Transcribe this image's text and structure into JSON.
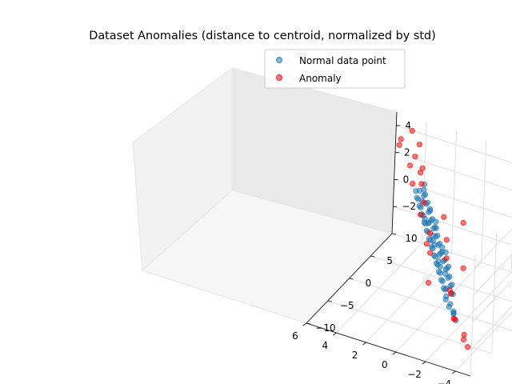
{
  "chart_data": {
    "type": "scatter",
    "title": "Dataset Anomalies (distance to centroid, normalized by std)",
    "xlabel": "",
    "ylabel": "",
    "zlabel": "",
    "xlim": [
      -5,
      6
    ],
    "ylim": [
      -10,
      10
    ],
    "zlim": [
      -4,
      5
    ],
    "x_ticks": [
      "−4",
      "−2",
      "0",
      "2",
      "4",
      "6"
    ],
    "y_ticks": [
      "−10",
      "−5",
      "0",
      "5",
      "10"
    ],
    "z_ticks": [
      "−2",
      "0",
      "2",
      "4"
    ],
    "grid": true,
    "legend_position": "top-right",
    "series": [
      {
        "name": "Normal data point",
        "color": "#1f77b4",
        "x": [
          -2.8,
          -2.5,
          -2.3,
          -2.1,
          -1.9,
          -1.7,
          -1.5,
          -1.3,
          -1.1,
          -0.9,
          -0.7,
          -0.5,
          -0.3,
          -0.1,
          0.1,
          0.3,
          0.5,
          0.7,
          0.9,
          1.1,
          1.3,
          1.5,
          1.7,
          1.9,
          2.1,
          2.3,
          2.5,
          2.7,
          2.9,
          3.1,
          3.3,
          3.5,
          -2.0,
          -1.6,
          -1.2,
          -0.8,
          -0.4,
          0.0,
          0.4,
          0.8,
          1.2,
          1.6,
          2.0,
          2.4,
          2.8,
          3.2,
          -1.8,
          -1.4,
          -1.0,
          -0.6,
          -0.2,
          0.2,
          0.6,
          1.0,
          1.4,
          1.8,
          2.2,
          2.6,
          3.0,
          -1.5,
          -0.5,
          0.5,
          1.5,
          2.5,
          -2.2,
          -1.0,
          0.0,
          1.0,
          2.0,
          3.0,
          -1.3,
          -0.3,
          0.7,
          1.7,
          2.7,
          0.3,
          1.2,
          1.9,
          -0.6,
          0.9
        ],
        "y": [
          -6.0,
          -5.5,
          -4.8,
          -5.2,
          -4.2,
          -4.6,
          -3.8,
          -3.4,
          -3.0,
          -2.6,
          -2.2,
          -1.8,
          -1.4,
          -1.0,
          -0.6,
          -0.2,
          0.2,
          0.6,
          1.0,
          1.4,
          1.8,
          2.2,
          2.6,
          3.0,
          3.4,
          3.8,
          4.2,
          4.6,
          5.0,
          5.4,
          5.8,
          6.2,
          -4.0,
          -3.2,
          -2.4,
          -1.6,
          -0.8,
          0.0,
          0.8,
          1.6,
          2.4,
          3.2,
          4.0,
          4.8,
          5.6,
          6.0,
          -3.6,
          -2.8,
          -2.0,
          -1.2,
          -0.4,
          0.4,
          1.2,
          2.0,
          2.8,
          3.6,
          4.4,
          5.2,
          6.4,
          -2.5,
          -0.5,
          1.5,
          3.5,
          5.0,
          -4.4,
          -2.0,
          0.0,
          2.0,
          4.0,
          6.0,
          -2.8,
          -0.8,
          1.2,
          3.2,
          5.2,
          0.6,
          2.4,
          3.8,
          -1.0,
          1.8
        ],
        "z": [
          -2.0,
          -1.8,
          -1.9,
          -1.5,
          -1.7,
          -1.3,
          -1.4,
          -1.1,
          -1.2,
          -0.9,
          -1.0,
          -0.7,
          -0.8,
          -0.5,
          -0.6,
          -0.3,
          -0.4,
          -0.1,
          -0.2,
          0.1,
          0.0,
          0.3,
          0.2,
          0.5,
          0.4,
          0.7,
          0.6,
          0.9,
          0.8,
          1.1,
          1.0,
          1.3,
          -1.0,
          -0.8,
          -0.6,
          -0.4,
          -0.2,
          0.0,
          0.2,
          0.4,
          0.6,
          0.8,
          1.0,
          1.2,
          1.4,
          1.5,
          -0.5,
          -0.3,
          -0.1,
          0.1,
          0.3,
          0.5,
          0.7,
          0.9,
          1.1,
          1.3,
          1.5,
          1.7,
          1.9,
          -1.6,
          -1.2,
          -0.8,
          -0.4,
          0.0,
          -2.2,
          -1.6,
          -1.0,
          -0.4,
          0.2,
          0.8,
          0.4,
          0.8,
          1.2,
          1.6,
          2.0,
          -0.9,
          -0.3,
          0.3,
          0.6,
          1.4
        ]
      },
      {
        "name": "Anomaly",
        "color": "#ff0000",
        "x": [
          -4.2,
          -3.8,
          -3.5,
          -3.0,
          -2.6,
          -2.0,
          -1.5,
          -0.8,
          0.2,
          0.9,
          1.5,
          2.2,
          2.8,
          3.2,
          3.6,
          4.0,
          4.4,
          4.8,
          5.2,
          5.6,
          -2.4,
          -0.4,
          1.2,
          2.6,
          3.9,
          4.6,
          -1.2,
          0.6
        ],
        "y": [
          -8.0,
          -7.5,
          -6.5,
          -7.0,
          -5.8,
          -4.5,
          -3.0,
          -1.5,
          -2.0,
          0.5,
          2.0,
          3.5,
          5.0,
          6.5,
          7.5,
          8.5,
          9.0,
          9.5,
          8.0,
          9.8,
          -3.2,
          -0.2,
          1.8,
          4.2,
          6.8,
          8.6,
          0.8,
          2.6
        ],
        "z": [
          -2.8,
          -2.2,
          -3.0,
          -1.5,
          -2.0,
          -0.8,
          -1.2,
          0.4,
          -1.6,
          1.0,
          -0.5,
          1.8,
          0.2,
          3.0,
          2.2,
          3.8,
          2.6,
          4.2,
          3.5,
          3.2,
          0.8,
          1.2,
          -1.0,
          2.8,
          1.5,
          2.0,
          2.4,
          1.6
        ]
      }
    ]
  }
}
